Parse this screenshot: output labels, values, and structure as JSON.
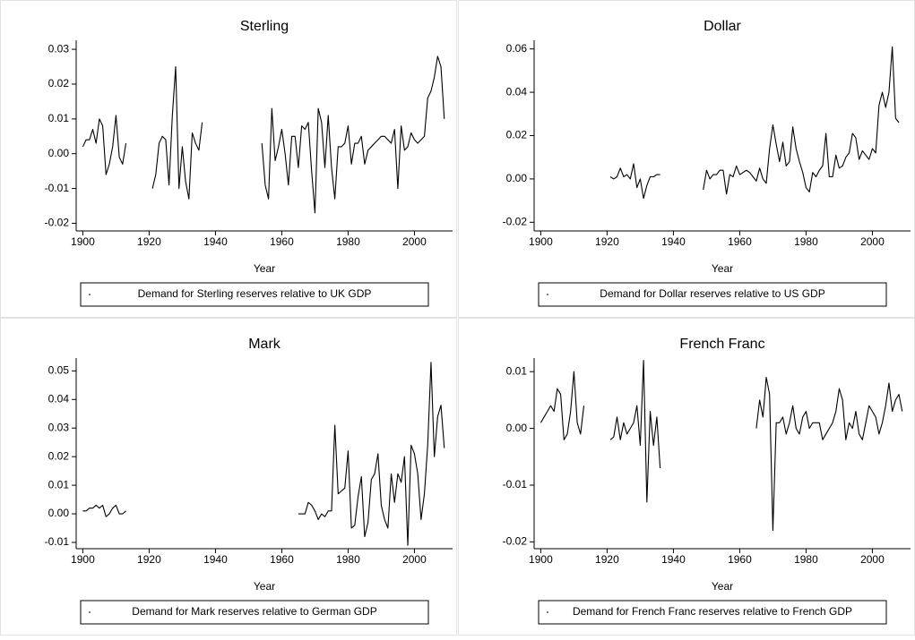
{
  "chart_data": [
    {
      "type": "line",
      "title": "Sterling",
      "x_label": "Year",
      "legend": "bottom",
      "x": [
        1900,
        1901,
        1902,
        1903,
        1904,
        1905,
        1906,
        1907,
        1908,
        1909,
        1910,
        1911,
        1912,
        1913,
        1914,
        1921,
        1922,
        1923,
        1924,
        1925,
        1926,
        1927,
        1928,
        1929,
        1930,
        1931,
        1932,
        1933,
        1934,
        1935,
        1936,
        1937,
        1954,
        1955,
        1956,
        1957,
        1958,
        1959,
        1960,
        1961,
        1962,
        1963,
        1964,
        1965,
        1966,
        1967,
        1968,
        1969,
        1970,
        1971,
        1972,
        1973,
        1974,
        1975,
        1976,
        1977,
        1978,
        1979,
        1980,
        1981,
        1982,
        1983,
        1984,
        1985,
        1986,
        1987,
        1988,
        1989,
        1990,
        1991,
        1992,
        1993,
        1994,
        1995,
        1996,
        1997,
        1998,
        1999,
        2000,
        2001,
        2002,
        2003,
        2004,
        2005,
        2006,
        2007,
        2008,
        2009
      ],
      "series": [
        {
          "name": "Demand for Sterling reserves relative to UK GDP",
          "color": "#000000",
          "values": [
            0.002,
            0.004,
            0.004,
            0.007,
            0.003,
            0.01,
            0.008,
            -0.006,
            -0.003,
            0.002,
            0.011,
            -0.001,
            -0.003,
            0.003,
            null,
            -0.01,
            -0.006,
            0.003,
            0.005,
            0.004,
            -0.009,
            0.011,
            0.025,
            -0.01,
            0.002,
            -0.008,
            -0.013,
            0.006,
            0.003,
            0.001,
            0.009,
            null,
            0.003,
            -0.009,
            -0.013,
            0.013,
            -0.002,
            0.002,
            0.007,
            0.0,
            -0.009,
            0.005,
            0.005,
            -0.004,
            0.008,
            0.007,
            0.009,
            -0.005,
            -0.017,
            0.013,
            0.009,
            -0.004,
            0.011,
            -0.004,
            -0.013,
            0.002,
            0.002,
            0.003,
            0.008,
            -0.003,
            0.003,
            0.003,
            0.005,
            -0.003,
            0.001,
            0.002,
            0.003,
            0.004,
            0.005,
            0.005,
            0.004,
            0.003,
            0.007,
            -0.01,
            0.008,
            0.001,
            0.002,
            0.006,
            0.004,
            0.003,
            0.004,
            0.005,
            0.016,
            0.018,
            0.022,
            0.028,
            0.025,
            0.01
          ]
        }
      ],
      "xlim": [
        1898,
        2011.5
      ],
      "xticks": [
        1900,
        1920,
        1940,
        1960,
        1980,
        2000
      ],
      "ylim": [
        -0.0222,
        0.0326
      ],
      "yticks": [
        -0.02,
        -0.01,
        {
          "value": 0,
          "label": "0.00"
        },
        0.01,
        0.02,
        0.03
      ]
    },
    {
      "type": "line",
      "title": "Dollar",
      "x_label": "Year",
      "legend": "bottom",
      "x": [
        1921,
        1922,
        1923,
        1924,
        1925,
        1926,
        1927,
        1928,
        1929,
        1930,
        1931,
        1932,
        1933,
        1934,
        1935,
        1936,
        1937,
        1949,
        1950,
        1951,
        1952,
        1953,
        1954,
        1955,
        1956,
        1957,
        1958,
        1959,
        1960,
        1961,
        1962,
        1963,
        1964,
        1965,
        1966,
        1967,
        1968,
        1969,
        1970,
        1971,
        1972,
        1973,
        1974,
        1975,
        1976,
        1977,
        1978,
        1979,
        1980,
        1981,
        1982,
        1983,
        1984,
        1985,
        1986,
        1987,
        1988,
        1989,
        1990,
        1991,
        1992,
        1993,
        1994,
        1995,
        1996,
        1997,
        1998,
        1999,
        2000,
        2001,
        2002,
        2003,
        2004,
        2005,
        2006,
        2007,
        2008
      ],
      "series": [
        {
          "name": "Demand for Dollar reserves relative to US GDP",
          "color": "#000000",
          "values": [
            0.001,
            0.0,
            0.001,
            0.005,
            0.001,
            0.002,
            0.0,
            0.007,
            -0.004,
            0.0,
            -0.009,
            -0.003,
            0.001,
            0.001,
            0.002,
            0.002,
            null,
            -0.005,
            0.004,
            0.0,
            0.002,
            0.002,
            0.004,
            0.004,
            -0.007,
            0.002,
            0.001,
            0.006,
            0.002,
            0.003,
            0.004,
            0.003,
            0.001,
            -0.001,
            0.005,
            0.0,
            -0.002,
            0.014,
            0.025,
            0.016,
            0.008,
            0.017,
            0.006,
            0.008,
            0.024,
            0.014,
            0.008,
            0.003,
            -0.004,
            -0.006,
            0.003,
            0.001,
            0.004,
            0.006,
            0.021,
            0.001,
            0.001,
            0.011,
            0.005,
            0.006,
            0.01,
            0.012,
            0.021,
            0.019,
            0.009,
            0.013,
            0.011,
            0.009,
            0.014,
            0.012,
            0.034,
            0.04,
            0.033,
            0.04,
            0.061,
            0.028,
            0.026
          ]
        }
      ],
      "xlim": [
        1898,
        2011.5
      ],
      "xticks": [
        1900,
        1920,
        1940,
        1960,
        1980,
        2000
      ],
      "ylim": [
        -0.024,
        0.064
      ],
      "yticks": [
        -0.02,
        {
          "value": 0,
          "label": "0.00"
        },
        0.02,
        0.04,
        0.06
      ]
    },
    {
      "type": "line",
      "title": "Mark",
      "x_label": "Year",
      "legend": "bottom",
      "x": [
        1900,
        1901,
        1902,
        1903,
        1904,
        1905,
        1906,
        1907,
        1908,
        1909,
        1910,
        1911,
        1912,
        1913,
        1914,
        1965,
        1966,
        1967,
        1968,
        1969,
        1970,
        1971,
        1972,
        1973,
        1974,
        1975,
        1976,
        1977,
        1978,
        1979,
        1980,
        1981,
        1982,
        1983,
        1984,
        1985,
        1986,
        1987,
        1988,
        1989,
        1990,
        1991,
        1992,
        1993,
        1994,
        1995,
        1996,
        1997,
        1998,
        1999,
        2000,
        2001,
        2002,
        2003,
        2004,
        2005,
        2006,
        2007,
        2008,
        2009
      ],
      "series": [
        {
          "name": "Demand for Mark reserves relative to German GDP",
          "color": "#000000",
          "values": [
            0.001,
            0.001,
            0.002,
            0.002,
            0.003,
            0.002,
            0.003,
            -0.001,
            0.0,
            0.002,
            0.003,
            0.0,
            0.0,
            0.001,
            null,
            0.0,
            0.0,
            0.0,
            0.004,
            0.003,
            0.001,
            -0.002,
            0.0,
            -0.001,
            0.001,
            0.001,
            0.031,
            0.007,
            0.008,
            0.009,
            0.022,
            -0.005,
            -0.004,
            0.006,
            0.013,
            -0.008,
            -0.003,
            0.012,
            0.014,
            0.021,
            0.003,
            -0.002,
            -0.005,
            0.014,
            0.004,
            0.014,
            0.011,
            0.02,
            -0.011,
            0.024,
            0.021,
            0.014,
            -0.002,
            0.007,
            0.024,
            0.053,
            0.02,
            0.034,
            0.038,
            0.023
          ]
        }
      ],
      "xlim": [
        1898,
        2011.5
      ],
      "xticks": [
        1900,
        1920,
        1940,
        1960,
        1980,
        2000
      ],
      "ylim": [
        -0.0122,
        0.0545
      ],
      "yticks": [
        -0.01,
        {
          "value": 0,
          "label": "0.00"
        },
        0.01,
        0.02,
        0.03,
        0.04,
        0.05
      ]
    },
    {
      "type": "line",
      "title": "French Franc",
      "x_label": "Year",
      "legend": "bottom",
      "x": [
        1900,
        1901,
        1902,
        1903,
        1904,
        1905,
        1906,
        1907,
        1908,
        1909,
        1910,
        1911,
        1912,
        1913,
        1914,
        1921,
        1922,
        1923,
        1924,
        1925,
        1926,
        1927,
        1928,
        1929,
        1930,
        1931,
        1932,
        1933,
        1934,
        1935,
        1936,
        1937,
        1965,
        1966,
        1967,
        1968,
        1969,
        1970,
        1971,
        1972,
        1973,
        1974,
        1975,
        1976,
        1977,
        1978,
        1979,
        1980,
        1981,
        1982,
        1983,
        1984,
        1985,
        1986,
        1987,
        1988,
        1989,
        1990,
        1991,
        1992,
        1993,
        1994,
        1995,
        1996,
        1997,
        1998,
        1999,
        2000,
        2001,
        2002,
        2003,
        2004,
        2005,
        2006,
        2007,
        2008,
        2009
      ],
      "series": [
        {
          "name": "Demand for French Franc reserves relative to French GDP",
          "color": "#000000",
          "values": [
            0.001,
            0.002,
            0.003,
            0.004,
            0.003,
            0.007,
            0.006,
            -0.002,
            -0.001,
            0.003,
            0.01,
            0.001,
            -0.001,
            0.004,
            null,
            -0.002,
            -0.0015,
            0.002,
            -0.002,
            0.001,
            -0.001,
            0.0,
            0.001,
            0.004,
            -0.003,
            0.012,
            -0.013,
            0.003,
            -0.003,
            0.002,
            -0.007,
            null,
            0.0,
            0.005,
            0.002,
            0.009,
            0.006,
            -0.018,
            0.001,
            0.001,
            0.002,
            -0.001,
            0.001,
            0.004,
            0.0,
            -0.001,
            0.002,
            0.003,
            0.0,
            0.001,
            0.001,
            0.001,
            -0.002,
            -0.001,
            0.0,
            0.001,
            0.003,
            0.007,
            0.005,
            -0.002,
            0.001,
            0.0,
            0.003,
            -0.001,
            -0.002,
            0.001,
            0.004,
            0.003,
            0.002,
            -0.001,
            0.001,
            0.004,
            0.008,
            0.003,
            0.005,
            0.006,
            0.003
          ]
        }
      ],
      "xlim": [
        1898,
        2011.5
      ],
      "xticks": [
        1900,
        1920,
        1940,
        1960,
        1980,
        2000
      ],
      "ylim": [
        -0.0212,
        0.0124
      ],
      "yticks": [
        -0.02,
        -0.01,
        {
          "value": 0,
          "label": "0.00"
        },
        0.01
      ]
    }
  ]
}
